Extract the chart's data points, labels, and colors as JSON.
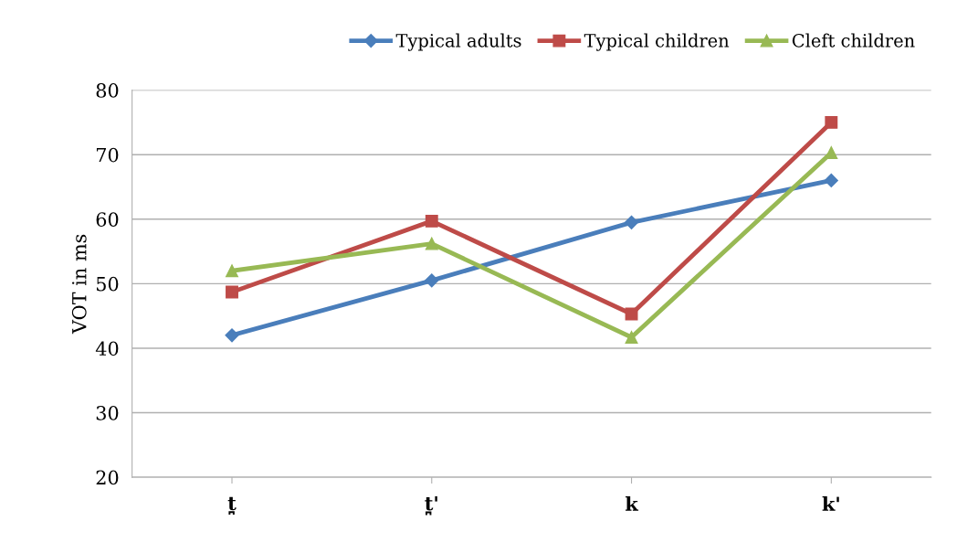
{
  "chart_data": {
    "type": "line",
    "ylabel": "VOT in ms",
    "categories": [
      "t̪",
      "t̪'",
      "k",
      "k'"
    ],
    "series": [
      {
        "name": "Typical adults",
        "color": "#4a7ebb",
        "marker": "diamond",
        "values": [
          42,
          50.5,
          59.5,
          66
        ]
      },
      {
        "name": "Typical children",
        "color": "#be4b48",
        "marker": "square",
        "values": [
          48.7,
          59.7,
          45.3,
          75
        ]
      },
      {
        "name": "Cleft children",
        "color": "#98b954",
        "marker": "triangle",
        "values": [
          52,
          56.2,
          41.7,
          70.3
        ]
      }
    ],
    "ylim": [
      20,
      80
    ],
    "yticks": [
      20,
      30,
      40,
      50,
      60,
      70,
      80
    ],
    "grid": "y",
    "legend": "top"
  }
}
